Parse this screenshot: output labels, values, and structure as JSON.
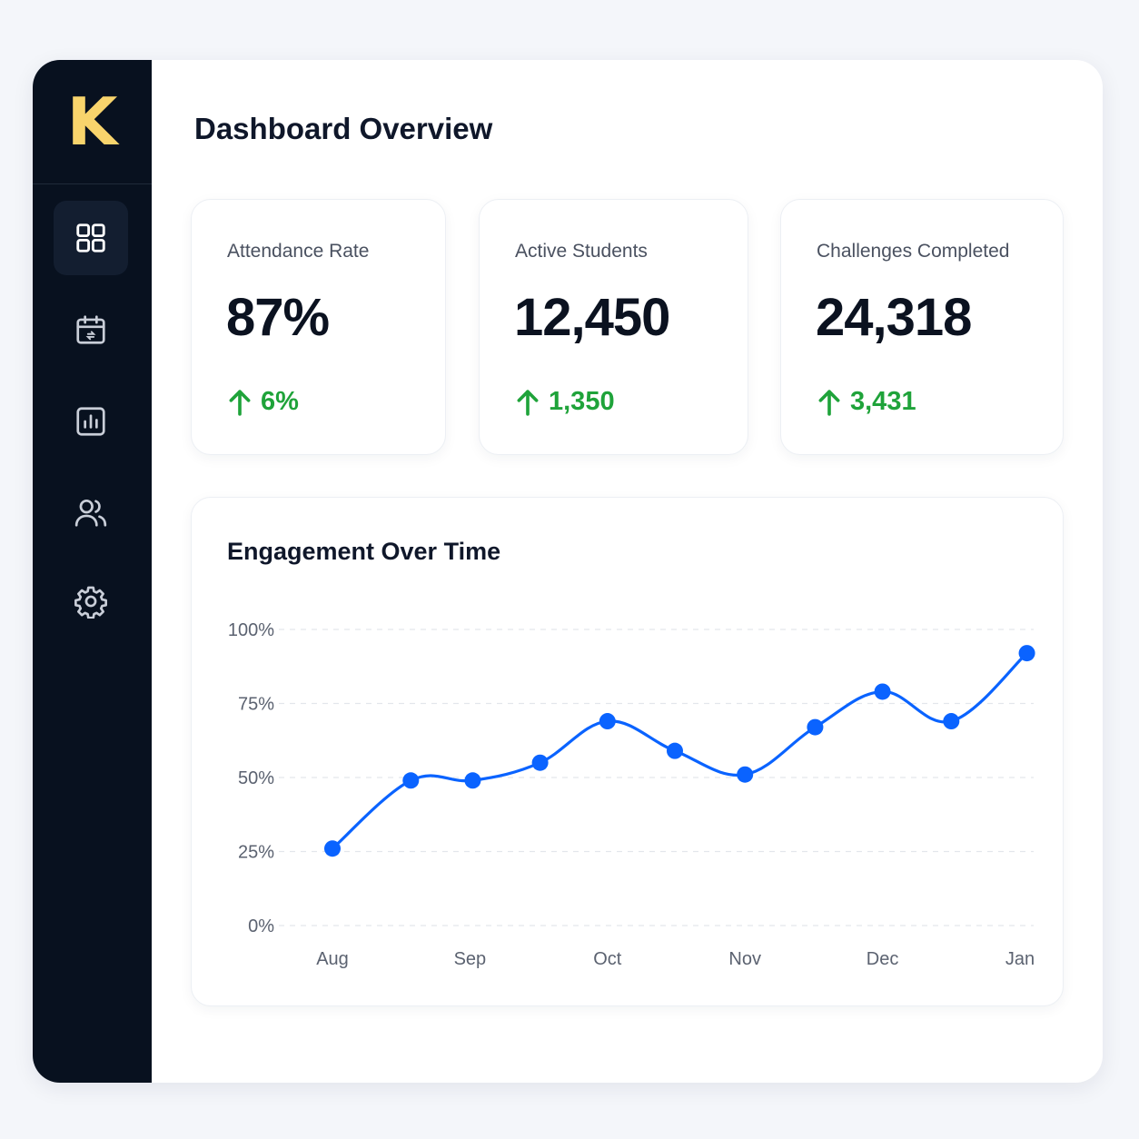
{
  "brand": {
    "logo_letter": "K",
    "logo_color": "#f8d46c"
  },
  "sidebar": {
    "items": [
      {
        "icon": "dashboard-grid-icon",
        "active": true
      },
      {
        "icon": "calendar-icon",
        "active": false
      },
      {
        "icon": "bar-chart-icon",
        "active": false
      },
      {
        "icon": "users-icon",
        "active": false
      },
      {
        "icon": "gear-icon",
        "active": false
      }
    ]
  },
  "header": {
    "title": "Dashboard Overview"
  },
  "stats": [
    {
      "label": "Attendance Rate",
      "value": "87%",
      "delta": "6%",
      "trend": "up"
    },
    {
      "label": "Active Students",
      "value": "12,450",
      "delta": "1,350",
      "trend": "up"
    },
    {
      "label": "Challenges Completed",
      "value": "24,318",
      "delta": "3,431",
      "trend": "up"
    }
  ],
  "colors": {
    "positive": "#1fa33a",
    "accent": "#0a63ff",
    "sidebar_bg": "#08111f"
  },
  "chart": {
    "title": "Engagement Over Time"
  },
  "chart_data": {
    "type": "line",
    "title": "Engagement Over Time",
    "xlabel": "",
    "ylabel": "",
    "x_tick_labels": [
      "Aug",
      "Sep",
      "Oct",
      "Nov",
      "Dec",
      "Jan"
    ],
    "y_tick_labels": [
      "100%",
      "75%",
      "50%",
      "25%",
      "0%"
    ],
    "ylim": [
      0,
      100
    ],
    "grid": true,
    "x": [
      0,
      0.57,
      1.02,
      1.51,
      2.0,
      2.49,
      3.0,
      3.51,
      4.0,
      4.5,
      5.05
    ],
    "series": [
      {
        "values": [
          26,
          49,
          49,
          55,
          69,
          59,
          51,
          67,
          79,
          69,
          92
        ],
        "color": "#0a63ff"
      }
    ]
  }
}
